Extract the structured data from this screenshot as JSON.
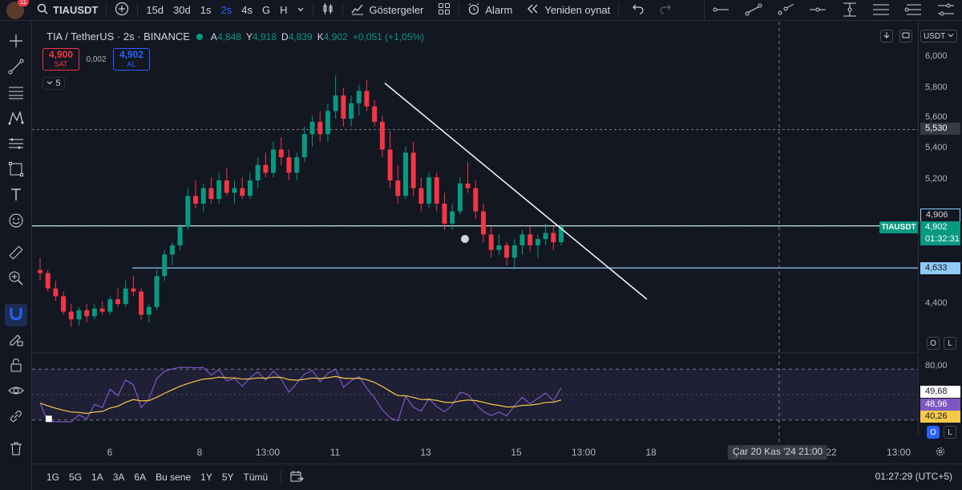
{
  "header": {
    "avatar_badge": "11",
    "symbol": "TIAUSDT",
    "intervals": [
      {
        "label": "15d",
        "active": false
      },
      {
        "label": "30d",
        "active": false
      },
      {
        "label": "1s",
        "active": false
      },
      {
        "label": "2s",
        "active": true
      },
      {
        "label": "4s",
        "active": false
      },
      {
        "label": "G",
        "active": false
      },
      {
        "label": "H",
        "active": false
      }
    ],
    "indicators_label": "Göstergeler",
    "alarm_label": "Alarm",
    "replay_label": "Yeniden oynat"
  },
  "legend": {
    "title": "TIA / TetherUS · 2s · BINANCE",
    "open_k": "A",
    "open_v": "4,848",
    "high_k": "Y",
    "high_v": "4,918",
    "low_k": "D",
    "low_v": "4,839",
    "close_k": "K",
    "close_v": "4,902",
    "change": "+0,051 (+1,05%)",
    "indicator_count": "5"
  },
  "trade": {
    "sell_price": "4,900",
    "sell_label": "SAT",
    "spread": "0,002",
    "buy_price": "4,902",
    "buy_label": "AL"
  },
  "price_scale": {
    "currency": "USDT",
    "ticks": [
      "6,000",
      "5,800",
      "5,600",
      "5,400",
      "5,200",
      "4,400"
    ],
    "labels": {
      "hline_top": "5,530",
      "hline_mid": "4,906",
      "current_price": "4,902",
      "countdown": "01:32:31",
      "hline_low": "4,633",
      "symbol_tag": "TIAUSDT"
    },
    "auto_btn": "O",
    "log_btn": "L"
  },
  "rsi_scale": {
    "tick_top": "80,00",
    "val1": "49,68",
    "val2": "48,96",
    "val3": "40,26",
    "auto_btn": "O",
    "log_btn": "L"
  },
  "time_axis": {
    "ticks": [
      "6",
      "8",
      "13:00",
      "11",
      "13",
      "15",
      "13:00",
      "18",
      "22",
      "13:00"
    ],
    "cursor_label": "Çar 20 Kas '24   21:00"
  },
  "bottom": {
    "ranges": [
      "1G",
      "5G",
      "1A",
      "3A",
      "6A",
      "Bu sene",
      "1Y",
      "5Y",
      "Tümü"
    ],
    "clock": "01:27:29 (UTC+5)"
  },
  "colors": {
    "up": "#089981",
    "down": "#f23645",
    "rsi": "#7e57c2",
    "rsi_ma": "#f7c948",
    "trendline": "#ffffff",
    "hline": "#90caf9"
  },
  "chart_data": {
    "type": "candlestick",
    "symbol": "TIA / TetherUS",
    "interval": "2s",
    "exchange": "BINANCE",
    "ohlc_last": {
      "open": 4.848,
      "high": 4.918,
      "low": 4.839,
      "close": 4.902
    },
    "price_range": [
      4.2,
      6.05
    ],
    "horizontal_levels": [
      5.53,
      4.906,
      4.633
    ],
    "trendline": {
      "from": {
        "price": 5.83
      },
      "to": {
        "price": 4.43
      }
    },
    "candles": [
      [
        4.62,
        4.7,
        4.55,
        4.6
      ],
      [
        4.6,
        4.62,
        4.48,
        4.5
      ],
      [
        4.5,
        4.55,
        4.42,
        4.45
      ],
      [
        4.45,
        4.48,
        4.33,
        4.35
      ],
      [
        4.35,
        4.4,
        4.25,
        4.3
      ],
      [
        4.3,
        4.38,
        4.26,
        4.36
      ],
      [
        4.36,
        4.4,
        4.28,
        4.32
      ],
      [
        4.32,
        4.4,
        4.3,
        4.37
      ],
      [
        4.37,
        4.42,
        4.33,
        4.35
      ],
      [
        4.35,
        4.45,
        4.33,
        4.43
      ],
      [
        4.43,
        4.5,
        4.38,
        4.4
      ],
      [
        4.4,
        4.55,
        4.38,
        4.5
      ],
      [
        4.5,
        4.58,
        4.45,
        4.48
      ],
      [
        4.48,
        4.5,
        4.3,
        4.33
      ],
      [
        4.33,
        4.4,
        4.28,
        4.38
      ],
      [
        4.38,
        4.62,
        4.36,
        4.58
      ],
      [
        4.58,
        4.75,
        4.55,
        4.72
      ],
      [
        4.72,
        4.8,
        4.65,
        4.78
      ],
      [
        4.78,
        4.92,
        4.75,
        4.9
      ],
      [
        4.9,
        5.15,
        4.88,
        5.1
      ],
      [
        5.1,
        5.2,
        5.02,
        5.05
      ],
      [
        5.05,
        5.18,
        5.0,
        5.15
      ],
      [
        5.15,
        5.22,
        5.05,
        5.08
      ],
      [
        5.08,
        5.25,
        5.05,
        5.2
      ],
      [
        5.2,
        5.28,
        5.1,
        5.12
      ],
      [
        5.12,
        5.2,
        5.05,
        5.15
      ],
      [
        5.15,
        5.22,
        5.08,
        5.1
      ],
      [
        5.1,
        5.25,
        5.08,
        5.2
      ],
      [
        5.2,
        5.35,
        5.15,
        5.3
      ],
      [
        5.3,
        5.38,
        5.22,
        5.25
      ],
      [
        5.25,
        5.45,
        5.22,
        5.4
      ],
      [
        5.4,
        5.48,
        5.3,
        5.35
      ],
      [
        5.35,
        5.4,
        5.2,
        5.25
      ],
      [
        5.25,
        5.38,
        5.2,
        5.35
      ],
      [
        5.35,
        5.55,
        5.32,
        5.5
      ],
      [
        5.5,
        5.62,
        5.42,
        5.58
      ],
      [
        5.58,
        5.65,
        5.45,
        5.5
      ],
      [
        5.5,
        5.7,
        5.45,
        5.65
      ],
      [
        5.65,
        5.88,
        5.6,
        5.75
      ],
      [
        5.75,
        5.8,
        5.55,
        5.6
      ],
      [
        5.6,
        5.75,
        5.55,
        5.7
      ],
      [
        5.7,
        5.82,
        5.62,
        5.78
      ],
      [
        5.78,
        5.85,
        5.65,
        5.68
      ],
      [
        5.68,
        5.72,
        5.55,
        5.58
      ],
      [
        5.58,
        5.62,
        5.35,
        5.4
      ],
      [
        5.4,
        5.52,
        5.15,
        5.2
      ],
      [
        5.2,
        5.3,
        5.05,
        5.1
      ],
      [
        5.1,
        5.42,
        5.08,
        5.38
      ],
      [
        5.38,
        5.45,
        5.1,
        5.15
      ],
      [
        5.15,
        5.22,
        5.0,
        5.05
      ],
      [
        5.05,
        5.25,
        5.02,
        5.22
      ],
      [
        5.22,
        5.25,
        5.0,
        5.05
      ],
      [
        5.05,
        5.12,
        4.88,
        4.92
      ],
      [
        4.92,
        5.05,
        4.88,
        5.0
      ],
      [
        5.0,
        5.22,
        4.98,
        5.18
      ],
      [
        5.18,
        5.32,
        5.12,
        5.15
      ],
      [
        5.15,
        5.2,
        4.95,
        5.0
      ],
      [
        5.0,
        5.05,
        4.8,
        4.85
      ],
      [
        4.85,
        4.9,
        4.7,
        4.75
      ],
      [
        4.75,
        4.85,
        4.72,
        4.78
      ],
      [
        4.78,
        4.8,
        4.65,
        4.7
      ],
      [
        4.7,
        4.82,
        4.62,
        4.78
      ],
      [
        4.78,
        4.88,
        4.72,
        4.85
      ],
      [
        4.85,
        4.9,
        4.74,
        4.78
      ],
      [
        4.78,
        4.85,
        4.7,
        4.82
      ],
      [
        4.82,
        4.92,
        4.78,
        4.86
      ],
      [
        4.86,
        4.9,
        4.75,
        4.8
      ],
      [
        4.8,
        4.92,
        4.78,
        4.9
      ]
    ],
    "rsi": {
      "name": "RSI",
      "upper_band": 80,
      "lower_band": 20,
      "last_values": [
        49.68,
        48.96,
        40.26
      ]
    }
  }
}
